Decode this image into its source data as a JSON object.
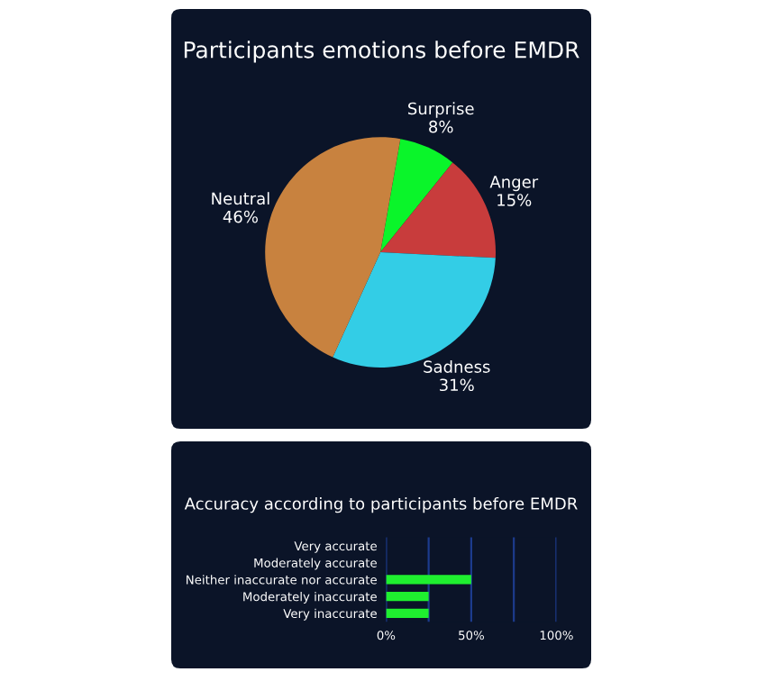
{
  "chart_data": [
    {
      "type": "pie",
      "title": "Participants emotions before EMDR",
      "categories": [
        "Surprise",
        "Anger",
        "Sadness",
        "Neutral"
      ],
      "values": [
        8,
        15,
        31,
        46
      ],
      "value_labels": [
        "8%",
        "15%",
        "31%",
        "46%"
      ],
      "colors": [
        "#0af52a",
        "#c83c3c",
        "#33cde6",
        "#c8823f"
      ]
    },
    {
      "type": "bar",
      "orientation": "horizontal",
      "title": "Accuracy according to participants before EMDR",
      "categories": [
        "Very accurate",
        "Moderately accurate",
        "Neither inaccurate nor accurate",
        "Moderately inaccurate",
        "Very inaccurate"
      ],
      "values": [
        0,
        0,
        50,
        25,
        25
      ],
      "color": "#1fef2f",
      "xlim": [
        0,
        100
      ],
      "xticks": [
        {
          "value": 0,
          "label": "0%"
        },
        {
          "value": 25,
          "label": null
        },
        {
          "value": 50,
          "label": "50%"
        },
        {
          "value": 75,
          "label": null
        },
        {
          "value": 100,
          "label": "100%"
        }
      ],
      "grid": "x"
    }
  ]
}
